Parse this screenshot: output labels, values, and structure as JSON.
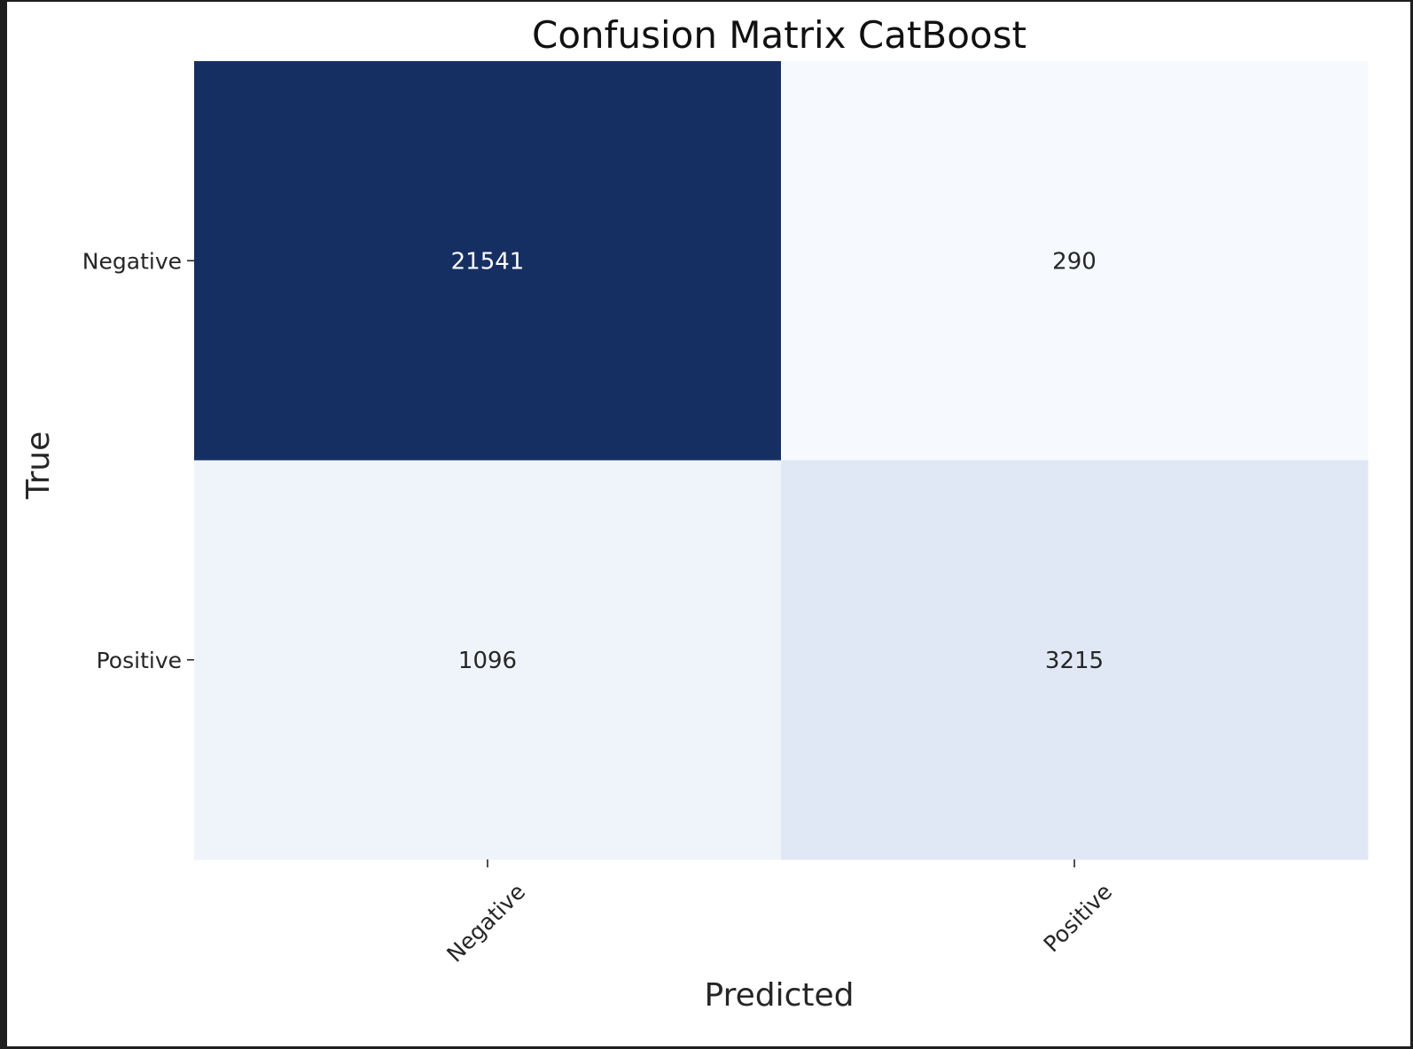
{
  "chart_data": {
    "type": "heatmap",
    "title": "Confusion Matrix CatBoost",
    "xlabel": "Predicted",
    "ylabel": "True",
    "x_categories": [
      "Negative",
      "Positive"
    ],
    "y_categories": [
      "Negative",
      "Positive"
    ],
    "values": [
      [
        21541,
        290
      ],
      [
        1096,
        3215
      ]
    ],
    "colormap": "Blues",
    "colorbar": false,
    "annotate": true,
    "cell_colors": [
      [
        "#162f63",
        "#f6f9fd"
      ],
      [
        "#eff4fb",
        "#dfe8f4"
      ]
    ],
    "label_colors": [
      [
        "#ffffff",
        "#262626"
      ],
      [
        "#262626",
        "#262626"
      ]
    ]
  }
}
